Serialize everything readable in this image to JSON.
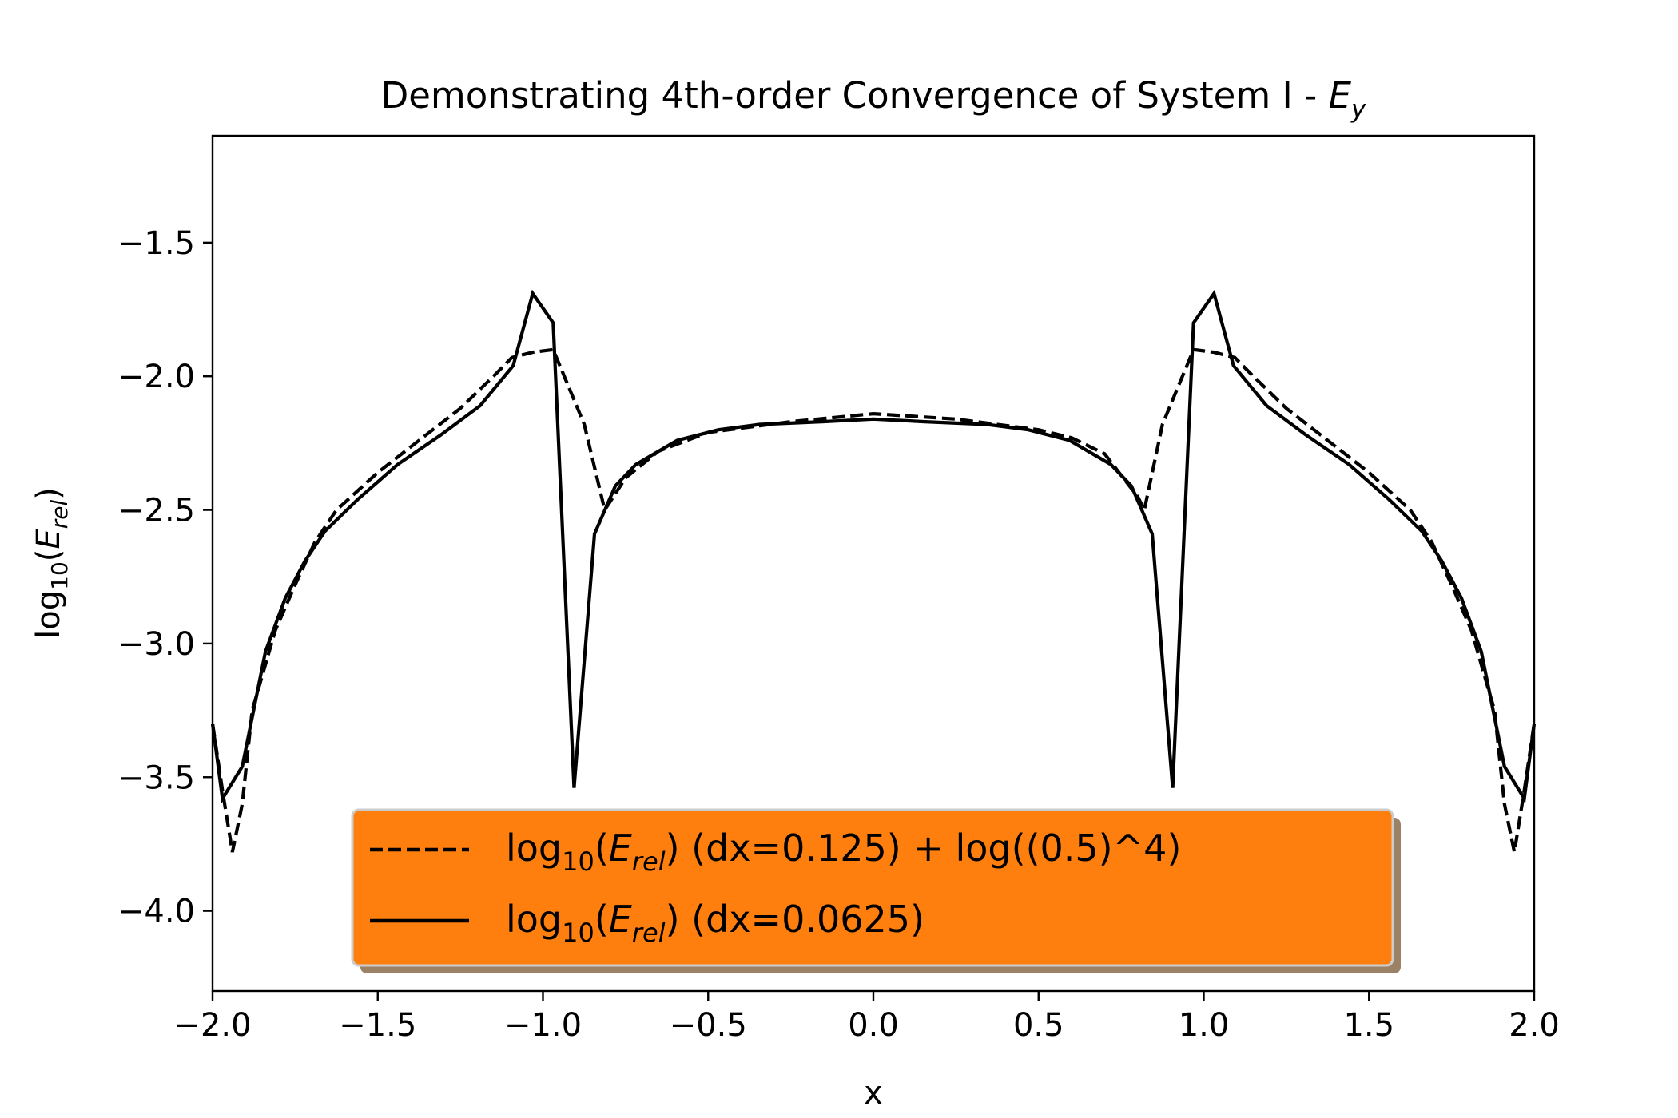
{
  "chart_data": {
    "type": "line",
    "title": {
      "text": "Demonstrating 4th-order Convergence of System I - ",
      "var_main": "E",
      "var_sub": "y"
    },
    "xlabel": "x",
    "ylabel": {
      "prefix": "log",
      "prefix_sub": "10",
      "open": "(",
      "var_main": "E",
      "var_sub": "rel",
      "close": ")"
    },
    "xlim": [
      -2.0,
      2.0
    ],
    "ylim": [
      -4.3,
      -1.1
    ],
    "xticks": [
      -2.0,
      -1.5,
      -1.0,
      -0.5,
      0.0,
      0.5,
      1.0,
      1.5,
      2.0
    ],
    "xtick_labels": [
      "−2.0",
      "−1.5",
      "−1.0",
      "−0.5",
      "0.0",
      "0.5",
      "1.0",
      "1.5",
      "2.0"
    ],
    "yticks": [
      -1.5,
      -2.0,
      -2.5,
      -3.0,
      -3.5,
      -4.0
    ],
    "ytick_labels": [
      "−1.5",
      "−2.0",
      "−2.5",
      "−3.0",
      "−3.5",
      "−4.0"
    ],
    "grid": false,
    "legend": {
      "placement": "lower-center",
      "background": "#ff7f0e",
      "entries": [
        {
          "prefix": "log",
          "prefix_sub": "10",
          "open": "(",
          "var_main": "E",
          "var_sub": "rel",
          "suffix": ") (dx=0.125) + log((0.5)^4)"
        },
        {
          "prefix": "log",
          "prefix_sub": "10",
          "open": "(",
          "var_main": "E",
          "var_sub": "rel",
          "suffix": ") (dx=0.0625)"
        }
      ]
    },
    "series": [
      {
        "style": "dashed",
        "color": "#000000",
        "points": [
          [
            -2.0,
            -3.3
          ],
          [
            -1.97,
            -3.55
          ],
          [
            -1.94,
            -3.78
          ],
          [
            -1.91,
            -3.6
          ],
          [
            -1.88,
            -3.25
          ],
          [
            -1.81,
            -2.95
          ],
          [
            -1.75,
            -2.78
          ],
          [
            -1.69,
            -2.62
          ],
          [
            -1.625,
            -2.5
          ],
          [
            -1.5,
            -2.36
          ],
          [
            -1.375,
            -2.24
          ],
          [
            -1.25,
            -2.12
          ],
          [
            -1.15,
            -2.0
          ],
          [
            -1.094,
            -1.93
          ],
          [
            -1.031,
            -1.91
          ],
          [
            -0.969,
            -1.9
          ],
          [
            -0.875,
            -2.18
          ],
          [
            -0.813,
            -2.5
          ],
          [
            -0.75,
            -2.38
          ],
          [
            -0.65,
            -2.28
          ],
          [
            -0.5,
            -2.21
          ],
          [
            -0.25,
            -2.17
          ],
          [
            0.0,
            -2.14
          ],
          [
            0.25,
            -2.16
          ],
          [
            0.5,
            -2.2
          ],
          [
            0.6,
            -2.23
          ],
          [
            0.7,
            -2.29
          ],
          [
            0.75,
            -2.37
          ],
          [
            0.8,
            -2.45
          ],
          [
            0.82,
            -2.5
          ],
          [
            0.875,
            -2.18
          ],
          [
            0.969,
            -1.9
          ],
          [
            1.031,
            -1.91
          ],
          [
            1.094,
            -1.93
          ],
          [
            1.15,
            -2.0
          ],
          [
            1.25,
            -2.12
          ],
          [
            1.375,
            -2.24
          ],
          [
            1.5,
            -2.36
          ],
          [
            1.625,
            -2.5
          ],
          [
            1.69,
            -2.62
          ],
          [
            1.75,
            -2.78
          ],
          [
            1.81,
            -2.95
          ],
          [
            1.88,
            -3.25
          ],
          [
            1.91,
            -3.6
          ],
          [
            1.94,
            -3.78
          ],
          [
            1.97,
            -3.55
          ],
          [
            2.0,
            -3.3
          ]
        ]
      },
      {
        "style": "solid",
        "color": "#000000",
        "points": [
          [
            -2.0,
            -3.3
          ],
          [
            -1.97,
            -3.58
          ],
          [
            -1.91,
            -3.46
          ],
          [
            -1.84,
            -3.03
          ],
          [
            -1.78,
            -2.83
          ],
          [
            -1.72,
            -2.69
          ],
          [
            -1.66,
            -2.58
          ],
          [
            -1.56,
            -2.46
          ],
          [
            -1.44,
            -2.33
          ],
          [
            -1.31,
            -2.22
          ],
          [
            -1.19,
            -2.11
          ],
          [
            -1.09,
            -1.96
          ],
          [
            -1.031,
            -1.69
          ],
          [
            -0.969,
            -1.8
          ],
          [
            -0.906,
            -3.54
          ],
          [
            -0.844,
            -2.59
          ],
          [
            -0.781,
            -2.41
          ],
          [
            -0.719,
            -2.33
          ],
          [
            -0.594,
            -2.24
          ],
          [
            -0.469,
            -2.2
          ],
          [
            -0.344,
            -2.18
          ],
          [
            -0.156,
            -2.17
          ],
          [
            0.0,
            -2.16
          ],
          [
            0.156,
            -2.17
          ],
          [
            0.344,
            -2.18
          ],
          [
            0.469,
            -2.2
          ],
          [
            0.594,
            -2.24
          ],
          [
            0.719,
            -2.33
          ],
          [
            0.781,
            -2.41
          ],
          [
            0.844,
            -2.59
          ],
          [
            0.906,
            -3.54
          ],
          [
            0.969,
            -1.8
          ],
          [
            1.031,
            -1.69
          ],
          [
            1.09,
            -1.96
          ],
          [
            1.19,
            -2.11
          ],
          [
            1.31,
            -2.22
          ],
          [
            1.44,
            -2.33
          ],
          [
            1.56,
            -2.46
          ],
          [
            1.66,
            -2.58
          ],
          [
            1.72,
            -2.69
          ],
          [
            1.78,
            -2.83
          ],
          [
            1.84,
            -3.03
          ],
          [
            1.91,
            -3.46
          ],
          [
            1.97,
            -3.58
          ],
          [
            2.0,
            -3.3
          ]
        ]
      }
    ]
  }
}
